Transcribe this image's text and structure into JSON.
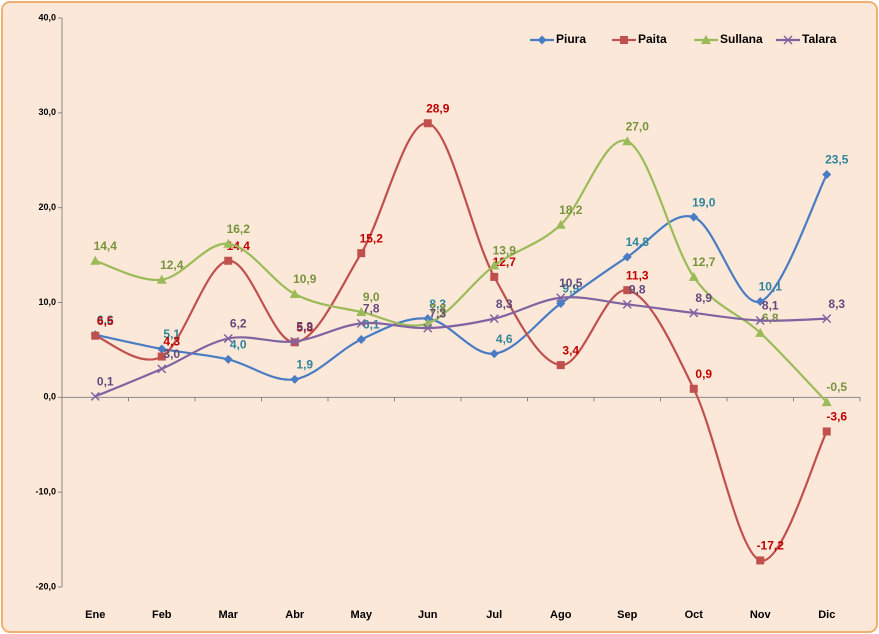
{
  "chart_data": {
    "type": "line",
    "categories": [
      "Ene",
      "Feb",
      "Mar",
      "Abr",
      "May",
      "Jun",
      "Jul",
      "Ago",
      "Sep",
      "Oct",
      "Nov",
      "Dic"
    ],
    "series": [
      {
        "name": "Piura",
        "color": "#4a7cc4",
        "marker": "diamond",
        "values": [
          6.6,
          5.1,
          4.0,
          1.9,
          6.1,
          8.3,
          4.6,
          9.9,
          14.8,
          19.0,
          10.1,
          23.5
        ],
        "value_labels": [
          "6,6",
          "5,1",
          "4,0",
          "1,9",
          "6,1",
          "8,3",
          "4,6",
          "9,9",
          "14,8",
          "19,0",
          "10,1",
          "23,5"
        ]
      },
      {
        "name": "Paita",
        "color": "#c0504d",
        "marker": "square",
        "values": [
          6.5,
          4.3,
          14.4,
          5.8,
          15.2,
          28.9,
          12.7,
          3.4,
          11.3,
          0.9,
          -17.2,
          -3.6
        ],
        "value_labels": [
          "6,5",
          "4,3",
          "14,4",
          "5,8",
          "15,2",
          "28,9",
          "12,7",
          "3,4",
          "11,3",
          "0,9",
          "-17,2",
          "-3,6"
        ]
      },
      {
        "name": "Sullana",
        "color": "#9bbb59",
        "marker": "triangle",
        "values": [
          14.4,
          12.4,
          16.2,
          10.9,
          9.0,
          7.8,
          13.9,
          18.2,
          27.0,
          12.7,
          6.8,
          -0.5
        ],
        "value_labels": [
          "14,4",
          "12,4",
          "16,2",
          "10,9",
          "9,0",
          "7,8",
          "13,9",
          "18,2",
          "27,0",
          "12,7",
          "6,8",
          "-0,5"
        ]
      },
      {
        "name": "Talara",
        "color": "#8064a2",
        "marker": "x",
        "values": [
          0.1,
          3.0,
          6.2,
          5.9,
          7.8,
          7.3,
          8.3,
          10.5,
          9.8,
          8.9,
          8.1,
          8.3
        ],
        "value_labels": [
          "0,1",
          "3,0",
          "6,2",
          "5,9",
          "7,8",
          "7,3",
          "8,3",
          "10,5",
          "9,8",
          "8,9",
          "8,1",
          "8,3"
        ]
      }
    ],
    "ylim": [
      -20,
      40
    ],
    "yticks": [
      {
        "value": -20,
        "label": "-20,0"
      },
      {
        "value": -10,
        "label": "-10,0"
      },
      {
        "value": 0,
        "label": "0,0"
      },
      {
        "value": 10,
        "label": "10,0"
      },
      {
        "value": 20,
        "label": "20,0"
      },
      {
        "value": 30,
        "label": "30,0"
      },
      {
        "value": 40,
        "label": "40,0"
      }
    ],
    "grid": false,
    "legend": "top-right"
  }
}
